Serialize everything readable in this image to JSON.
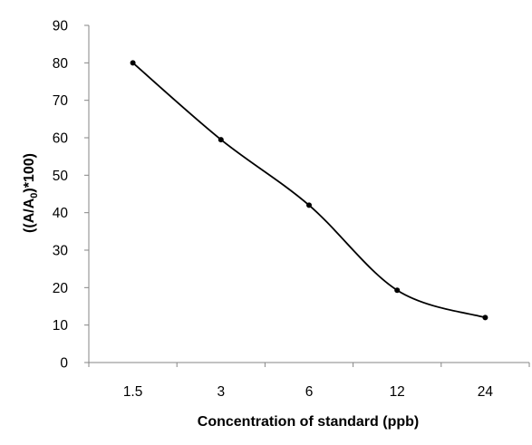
{
  "chart_data": {
    "type": "line",
    "categories": [
      "1.5",
      "3",
      "6",
      "12",
      "24"
    ],
    "series": [
      {
        "values": [
          80,
          59.5,
          42,
          19.3,
          12
        ]
      }
    ],
    "xlabel": "Concentration of standard (ppb)",
    "ylabel_parts": {
      "pre": "((A/A",
      "sub": "0",
      "post": ")*100)"
    },
    "ylim": [
      0,
      90
    ],
    "yticks": [
      0,
      10,
      20,
      30,
      40,
      50,
      60,
      70,
      80,
      90
    ],
    "grid": false,
    "smooth": true,
    "line_color": "#000000",
    "marker_color": "#000000"
  }
}
